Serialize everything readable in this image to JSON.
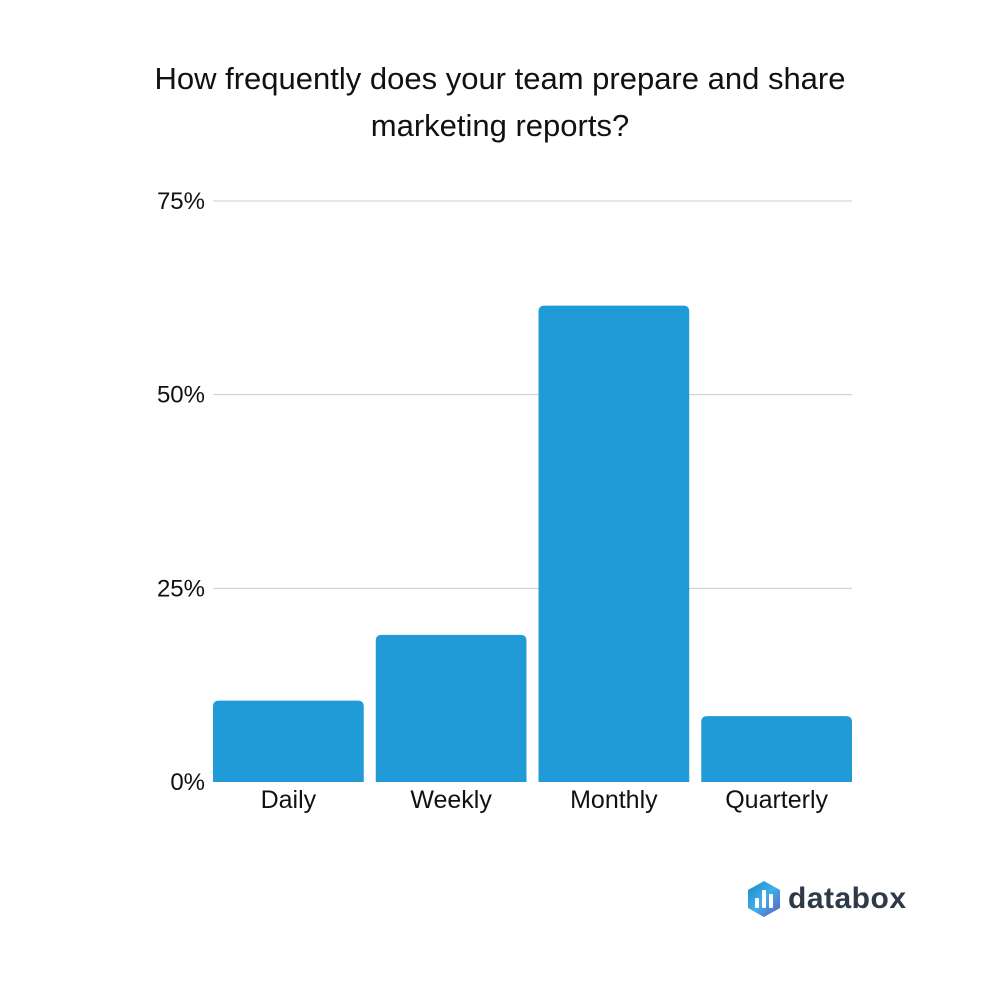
{
  "chart_data": {
    "type": "bar",
    "title": "How frequently does your team prepare and share marketing reports?",
    "categories": [
      "Daily",
      "Weekly",
      "Monthly",
      "Quarterly"
    ],
    "values": [
      10.5,
      19,
      61.5,
      8.5
    ],
    "ylim": [
      0,
      75
    ],
    "yticks": [
      0,
      25,
      50,
      75
    ],
    "ytick_labels": [
      "0%",
      "25%",
      "50%",
      "75%"
    ],
    "xlabel": "",
    "ylabel": "",
    "grid": true,
    "bar_color": "#219bd7",
    "grid_color": "#cccccc"
  },
  "brand": {
    "name": "databox",
    "colors": [
      "#1f84c6",
      "#3fb0e8",
      "#5e5ab8"
    ]
  }
}
